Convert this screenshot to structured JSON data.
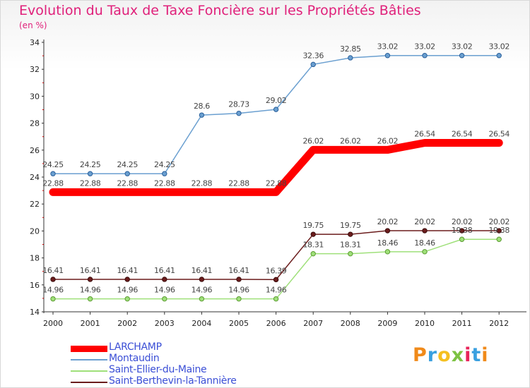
{
  "chart_data": {
    "type": "line",
    "title": "Evolution du Taux de Taxe Foncière sur les Propriétés Bâties",
    "subtitle": "(en %)",
    "x": [
      "2000",
      "2001",
      "2002",
      "2003",
      "2004",
      "2005",
      "2006",
      "2007",
      "2008",
      "2009",
      "2010",
      "2011",
      "2012"
    ],
    "ylim": [
      14,
      34
    ],
    "yticks": [
      14,
      16,
      18,
      20,
      22,
      24,
      26,
      28,
      30,
      32,
      34
    ],
    "grid": false,
    "legend_position": "bottom-left",
    "series": [
      {
        "name": "LARCHAMP",
        "color": "#ff0000",
        "values": [
          22.88,
          22.88,
          22.88,
          22.88,
          22.88,
          22.88,
          22.88,
          26.02,
          26.02,
          26.02,
          26.54,
          26.54,
          26.54
        ],
        "labels": [
          "22.88",
          "22.88",
          "22.88",
          "22.88",
          "22.88",
          "22.88",
          "22.88",
          "26.02",
          "26.02",
          "26.02",
          "26.54",
          "26.54",
          "26.54"
        ]
      },
      {
        "name": "Montaudin",
        "color": "#6a9fd0",
        "values": [
          24.25,
          24.25,
          24.25,
          24.25,
          28.6,
          28.73,
          29.02,
          32.36,
          32.85,
          33.02,
          33.02,
          33.02,
          33.02
        ],
        "labels": [
          "24.25",
          "24.25",
          "24.25",
          "24.25",
          "28.6",
          "28.73",
          "29.02",
          "32.36",
          "32.85",
          "33.02",
          "33.02",
          "33.02",
          "33.02"
        ]
      },
      {
        "name": "Saint-Ellier-du-Maine",
        "color": "#9fe07a",
        "values": [
          14.96,
          14.96,
          14.96,
          14.96,
          14.96,
          14.96,
          14.96,
          18.31,
          18.31,
          18.46,
          18.46,
          19.38,
          19.38
        ],
        "labels": [
          "14.96",
          "14.96",
          "14.96",
          "14.96",
          "14.96",
          "14.96",
          "14.96",
          "18.31",
          "18.31",
          "18.46",
          "18.46",
          "19.38",
          "19.38"
        ]
      },
      {
        "name": "Saint-Berthevin-la-Tannière",
        "color": "#6b1c1c",
        "values": [
          16.41,
          16.41,
          16.41,
          16.41,
          16.41,
          16.41,
          16.39,
          19.75,
          19.75,
          20.02,
          20.02,
          20.02,
          20.02
        ],
        "labels": [
          "16.41",
          "16.41",
          "16.41",
          "16.41",
          "16.41",
          "16.41",
          "16.39",
          "19.75",
          "19.75",
          "20.02",
          "20.02",
          "20.02",
          "20.02"
        ]
      }
    ]
  },
  "logo": {
    "text": "Proxiti",
    "colors": [
      "#f08a1a",
      "#3aa0e0",
      "#f5c020",
      "#7cc242",
      "#e8245a",
      "#3aa0e0",
      "#f08a1a"
    ]
  }
}
